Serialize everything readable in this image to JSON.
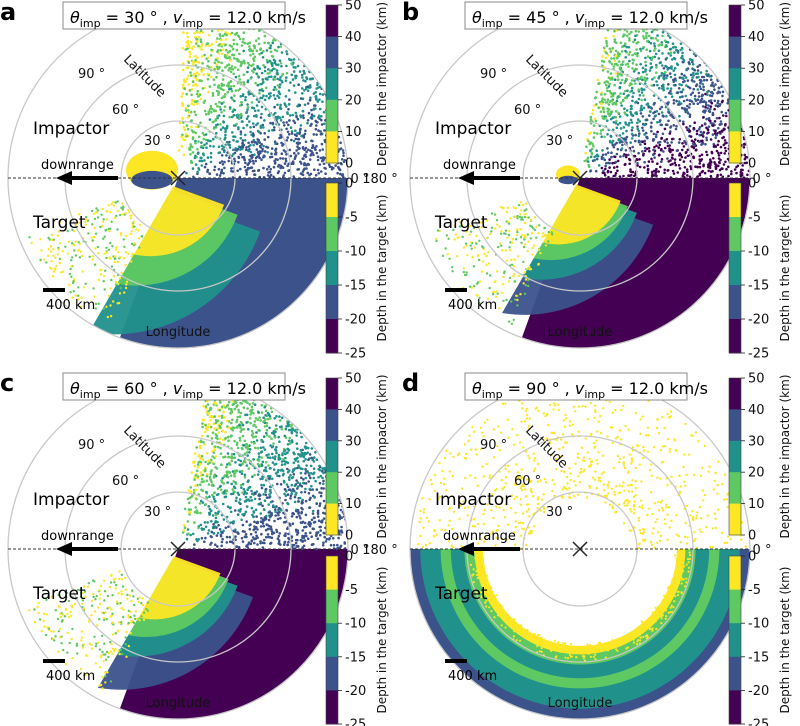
{
  "figure": {
    "impactor_colorbar": {
      "label": "Depth in the impactor (km)",
      "ticks": [
        "50",
        "40",
        "30",
        "20",
        "10",
        "0"
      ],
      "range": [
        0,
        50
      ],
      "bin_colors": [
        "#fde725",
        "#5ec962",
        "#21918c",
        "#3b528b",
        "#440154"
      ]
    },
    "target_colorbar": {
      "label": "Depth in the target (km)",
      "ticks": [
        "0",
        "-5",
        "-10",
        "-15",
        "-20",
        "-25"
      ],
      "range": [
        -25,
        0
      ],
      "bin_colors": [
        "#fde725",
        "#5ec962",
        "#21918c",
        "#3b528b",
        "#440154"
      ]
    },
    "polar_labels": {
      "latitude_axis": "Latitude",
      "longitude_axis": "Longitude",
      "lat_ticks": [
        "90 °",
        "60 °",
        "30 °"
      ],
      "lon_left": "180 °",
      "lon_right": "0 °",
      "upper_hemisphere": "Impactor",
      "lower_hemisphere": "Target",
      "arrow_label": "downrange",
      "scale_bar": "400 km"
    }
  },
  "chart_data": [
    {
      "type": "scatter",
      "panel": "a",
      "title_theta": "30",
      "title_v": "12.0",
      "title_text": "θimp = 30 ° , vimp = 12.0 km/s",
      "impactor_ejecta_extent_deg": [
        0,
        90
      ],
      "target_depth_bins_km": [
        0,
        -5,
        -10,
        -15,
        -20,
        -25
      ],
      "grid": true
    },
    {
      "type": "scatter",
      "panel": "b",
      "title_theta": "45",
      "title_v": "12.0",
      "title_text": "θimp = 45 ° , vimp = 12.0 km/s",
      "impactor_ejecta_extent_deg": [
        0,
        90
      ],
      "target_depth_bins_km": [
        0,
        -5,
        -10,
        -15,
        -20,
        -25
      ],
      "grid": true
    },
    {
      "type": "scatter",
      "panel": "c",
      "title_theta": "60",
      "title_v": "12.0",
      "title_text": "θimp = 60 ° , vimp = 12.0 km/s",
      "impactor_ejecta_extent_deg": [
        0,
        90
      ],
      "target_depth_bins_km": [
        0,
        -5,
        -10,
        -15,
        -20,
        -25
      ],
      "grid": true
    },
    {
      "type": "scatter",
      "panel": "d",
      "title_theta": "90",
      "title_v": "12.0",
      "title_text": "θimp = 90 ° , vimp = 12.0 km/s",
      "impactor_ejecta_extent_deg": [
        0,
        180
      ],
      "target_depth_bins_km": [
        0,
        -5,
        -10,
        -15,
        -20,
        -25
      ],
      "grid": true
    }
  ]
}
